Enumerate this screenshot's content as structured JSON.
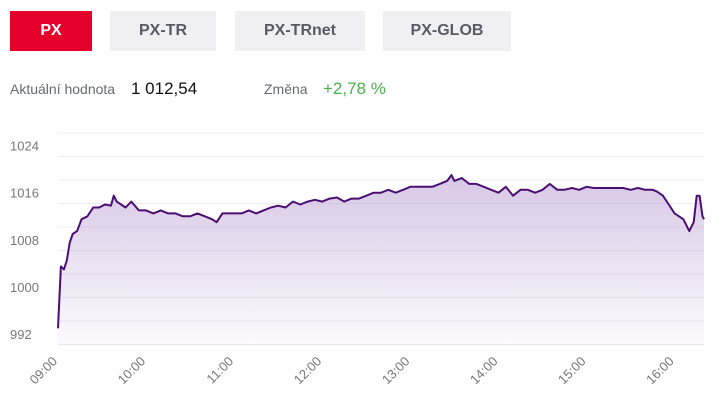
{
  "tabs": [
    {
      "label": "PX",
      "active": true
    },
    {
      "label": "PX-TR",
      "active": false
    },
    {
      "label": "PX-TRnet",
      "active": false
    },
    {
      "label": "PX-GLOB",
      "active": false
    }
  ],
  "summary": {
    "value_label": "Aktuální hodnota",
    "value": "1 012,54",
    "change_label": "Změna",
    "change": "+2,78 %"
  },
  "colors": {
    "accent": "#e4002b",
    "line": "#4b0f73",
    "positive": "#4caf50"
  },
  "chart_data": {
    "type": "area",
    "ylim": [
      990,
      1028
    ],
    "yticks": [
      992,
      1000,
      1008,
      1016,
      1024
    ],
    "xlim": [
      "09:00",
      "16:20"
    ],
    "xticks": [
      "09:00",
      "10:00",
      "11:00",
      "12:00",
      "13:00",
      "14:00",
      "15:00",
      "16:00"
    ],
    "grid": true,
    "series": [
      {
        "x": [
          "09:00",
          "09:02",
          "09:04",
          "09:06",
          "09:08",
          "09:10",
          "09:13",
          "09:16",
          "09:20",
          "09:24",
          "09:28",
          "09:32",
          "09:36",
          "09:38",
          "09:40",
          "09:43",
          "09:46",
          "09:50",
          "09:55",
          "10:00",
          "10:05",
          "10:10",
          "10:15",
          "10:20",
          "10:25",
          "10:30",
          "10:35",
          "10:40",
          "10:45",
          "10:48",
          "10:52",
          "10:56",
          "11:00",
          "11:05",
          "11:10",
          "11:15",
          "11:20",
          "11:25",
          "11:30",
          "11:35",
          "11:40",
          "11:45",
          "11:50",
          "11:55",
          "12:00",
          "12:05",
          "12:10",
          "12:15",
          "12:20",
          "12:25",
          "12:30",
          "12:35",
          "12:40",
          "12:45",
          "12:50",
          "12:55",
          "13:00",
          "13:05",
          "13:10",
          "13:15",
          "13:20",
          "13:25",
          "13:28",
          "13:30",
          "13:35",
          "13:40",
          "13:45",
          "13:50",
          "13:55",
          "14:00",
          "14:05",
          "14:10",
          "14:15",
          "14:20",
          "14:25",
          "14:30",
          "14:35",
          "14:40",
          "14:45",
          "14:50",
          "14:55",
          "15:00",
          "15:05",
          "15:10",
          "15:15",
          "15:20",
          "15:25",
          "15:30",
          "15:35",
          "15:40",
          "15:45",
          "15:48",
          "15:52",
          "15:56",
          "16:00",
          "16:03",
          "16:06",
          "16:10",
          "16:13",
          "16:15",
          "16:17",
          "16:19",
          "16:20"
        ],
        "y": [
          993.0,
          1003.5,
          1003.0,
          1004.5,
          1007.5,
          1009.0,
          1009.5,
          1011.5,
          1012.0,
          1013.5,
          1013.5,
          1014.0,
          1013.8,
          1015.5,
          1014.5,
          1014.0,
          1013.5,
          1014.5,
          1013.0,
          1013.0,
          1012.5,
          1013.0,
          1012.5,
          1012.5,
          1012.0,
          1012.0,
          1012.5,
          1012.0,
          1011.5,
          1011.0,
          1012.5,
          1012.5,
          1012.5,
          1012.5,
          1013.0,
          1012.5,
          1013.0,
          1013.5,
          1013.8,
          1013.5,
          1014.5,
          1014.0,
          1014.5,
          1014.8,
          1014.5,
          1015.0,
          1015.2,
          1014.5,
          1015.0,
          1015.0,
          1015.5,
          1016.0,
          1016.0,
          1016.5,
          1016.0,
          1016.5,
          1017.0,
          1017.0,
          1017.0,
          1017.0,
          1017.5,
          1018.0,
          1019.0,
          1018.0,
          1018.5,
          1017.5,
          1017.5,
          1017.0,
          1016.5,
          1016.0,
          1017.0,
          1015.5,
          1016.5,
          1016.5,
          1016.0,
          1016.5,
          1017.5,
          1016.5,
          1016.5,
          1016.8,
          1016.5,
          1017.0,
          1016.8,
          1016.8,
          1016.8,
          1016.8,
          1016.8,
          1016.5,
          1016.8,
          1016.5,
          1016.5,
          1016.2,
          1015.5,
          1014.0,
          1012.5,
          1012.0,
          1011.5,
          1009.5,
          1011.0,
          1015.5,
          1015.5,
          1012.0,
          1011.5
        ]
      }
    ]
  }
}
